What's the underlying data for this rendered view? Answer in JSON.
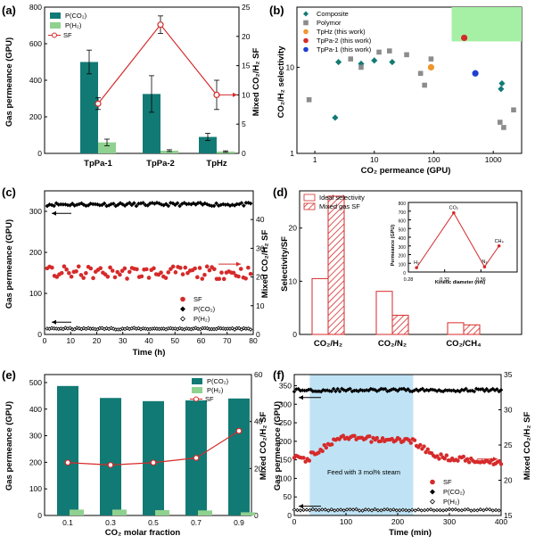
{
  "colors": {
    "teal": "#127a74",
    "lightgreen": "#8fd18f",
    "red": "#d62a2a",
    "black": "#000000",
    "hatch": "#d62a2a",
    "steam": "#bfe3f5",
    "target": "#a6f0a6",
    "orange": "#f0962e",
    "blue": "#1f3fd1",
    "grey": "#8c8c8c"
  },
  "chart_data": [
    {
      "id": "a",
      "panel_label": "(a)",
      "type": "bar",
      "categories": [
        "TpPa-1",
        "TpPa-2",
        "TpHz"
      ],
      "xlabel": "",
      "ylabel": "Gas permeance (GPU)",
      "ylabel2": "Mixed CO₂/H₂ SF",
      "ylim": [
        0,
        800
      ],
      "yticks": [
        "0",
        "200",
        "400",
        "600",
        "800"
      ],
      "ylim2": [
        0,
        25
      ],
      "yticks2": [
        "0",
        "5",
        "10",
        "15",
        "20",
        "25"
      ],
      "series": [
        {
          "name": "P(CO₂)",
          "values": [
            500,
            325,
            90
          ],
          "errors": [
            65,
            100,
            20
          ]
        },
        {
          "name": "P(H₂)",
          "values": [
            60,
            15,
            10
          ],
          "errors": [
            18,
            5,
            4
          ]
        },
        {
          "name": "SF",
          "values": [
            8.5,
            22,
            10
          ],
          "errors": [
            1,
            1.5,
            2.5
          ]
        }
      ],
      "legend": "top-left"
    },
    {
      "id": "b",
      "panel_label": "(b)",
      "type": "scatter",
      "xlabel": "CO₂ permeance (GPU)",
      "ylabel": "CO₂/H₂ selectivity",
      "xscale": "log",
      "yscale": "log",
      "xlim": [
        0.5,
        3000
      ],
      "ylim": [
        1,
        50
      ],
      "xticks": [
        "1",
        "10",
        "100",
        "1000"
      ],
      "yticks": [
        "1",
        "10"
      ],
      "series": [
        {
          "name": "Composite",
          "points": [
            [
              2.5,
              11.5
            ],
            [
              6,
              11
            ],
            [
              10,
              12
            ],
            [
              20,
              11.5
            ],
            [
              1400,
              6.5
            ],
            [
              1350,
              5.6
            ],
            [
              2.2,
              2.6
            ]
          ]
        },
        {
          "name": "Polymor",
          "points": [
            [
              0.8,
              4.2
            ],
            [
              4,
              12.5
            ],
            [
              6,
              10
            ],
            [
              12,
              15
            ],
            [
              18,
              15.5
            ],
            [
              35,
              14
            ],
            [
              60,
              8.5
            ],
            [
              70,
              6.2
            ],
            [
              90,
              12.5
            ],
            [
              1300,
              2.3
            ],
            [
              1500,
              2
            ],
            [
              2200,
              3.2
            ]
          ]
        },
        {
          "name": "TpHz (this work)",
          "points": [
            [
              90,
              10
            ]
          ]
        },
        {
          "name": "TpPa-2 (this work)",
          "points": [
            [
              325,
              22
            ]
          ]
        },
        {
          "name": "TpPa-1 (this work)",
          "points": [
            [
              500,
              8.5
            ]
          ]
        }
      ],
      "legend": "top-left"
    },
    {
      "id": "c",
      "panel_label": "(c)",
      "type": "scatter",
      "xlabel": "Time (h)",
      "ylabel": "Gas permeance (GPU)",
      "ylabel2": "Mixed CO₂/H₂ SF",
      "xlim": [
        0,
        80
      ],
      "xticks": [
        "0",
        "10",
        "20",
        "30",
        "40",
        "50",
        "60",
        "70",
        "80"
      ],
      "ylim": [
        0,
        350
      ],
      "yticks": [
        "0",
        "100",
        "200",
        "300"
      ],
      "ylim2": [
        0,
        50
      ],
      "yticks2": [
        "0",
        "10",
        "20",
        "30",
        "40"
      ],
      "series": [
        {
          "name": "SF",
          "mean": 21.5,
          "spread": 2.2,
          "range": [
            1,
            79
          ],
          "count": 85
        },
        {
          "name": "P(CO₂)",
          "mean": 317,
          "spread": 4,
          "range": [
            1,
            79
          ],
          "count": 90
        },
        {
          "name": "P(H₂)",
          "mean": 14,
          "spread": 2,
          "range": [
            1,
            79
          ],
          "count": 90
        }
      ],
      "legend": "bottom-right"
    },
    {
      "id": "d",
      "panel_label": "(d)",
      "type": "bar",
      "categories": [
        "CO₂/H₂",
        "CO₂/N₂",
        "CO₂/CH₄"
      ],
      "xlabel": "",
      "ylabel": "Selectivity/SF",
      "ylim": [
        0,
        27
      ],
      "yticks": [
        "0",
        "10",
        "20"
      ],
      "series": [
        {
          "name": "Ideal selectivity",
          "values": [
            10.5,
            8.1,
            2.2
          ]
        },
        {
          "name": "Mixed gas SF",
          "values": [
            26,
            3.6,
            1.8
          ]
        }
      ],
      "legend": "top-left",
      "inset": {
        "type": "line",
        "xlabel": "Kinetic diameter (nm)",
        "ylabel": "Permeance (GPU)",
        "xlim": [
          0.28,
          0.4
        ],
        "xticks": [
          "0.28",
          "0.32",
          "0.36"
        ],
        "ylim": [
          0,
          800
        ],
        "yticks": [
          "0",
          "100",
          "200",
          "300",
          "400",
          "500",
          "600",
          "700",
          "800"
        ],
        "points": [
          {
            "label": "H₂",
            "x": 0.289,
            "y": 50
          },
          {
            "label": "CO₂",
            "x": 0.33,
            "y": 680
          },
          {
            "label": "N₂",
            "x": 0.364,
            "y": 60
          },
          {
            "label": "CH₄",
            "x": 0.38,
            "y": 300
          }
        ]
      }
    },
    {
      "id": "e",
      "panel_label": "(e)",
      "type": "bar",
      "categories": [
        "0.1",
        "0.3",
        "0.5",
        "0.7",
        "0.9"
      ],
      "xlabel": "CO₂ molar fraction",
      "ylabel": "Gas permeance (GPU)",
      "ylabel2": "Mixed CO₂/H₂ SF",
      "ylim": [
        0,
        530
      ],
      "yticks": [
        "0",
        "100",
        "200",
        "300",
        "400",
        "500"
      ],
      "ylim2": [
        0,
        60
      ],
      "yticks2": [
        "0",
        "20",
        "40",
        "60"
      ],
      "series": [
        {
          "name": "P(CO₂)",
          "values": [
            487,
            442,
            430,
            433,
            440
          ]
        },
        {
          "name": "P(H₂)",
          "values": [
            22,
            22,
            20,
            19,
            12
          ]
        },
        {
          "name": "SF",
          "values": [
            22.5,
            21.5,
            22.5,
            24.5,
            36
          ]
        }
      ],
      "legend": "top-right"
    },
    {
      "id": "f",
      "panel_label": "(f)",
      "type": "scatter",
      "xlabel": "Time (min)",
      "ylabel": "Gas permeance (GPU)",
      "ylabel2": "Mixed CO₂/H₂ SF",
      "xlim": [
        0,
        400
      ],
      "xticks": [
        "0",
        "100",
        "200",
        "300",
        "400"
      ],
      "ylim": [
        0,
        380
      ],
      "yticks": [
        "0",
        "50",
        "100",
        "150",
        "200",
        "250",
        "300",
        "350"
      ],
      "ylim2": [
        15,
        35
      ],
      "yticks2": [
        "15",
        "20",
        "25",
        "30",
        "35"
      ],
      "annotation": "Feed with 3 mol% steam",
      "shaded_x": [
        30,
        230
      ],
      "series": [
        {
          "name": "SF",
          "note": "≈23 before steam, rising to ≈26 during steam, falling to ≈22.5 after"
        },
        {
          "name": "P(CO₂)",
          "mean": 338,
          "spread": 4,
          "range": [
            0,
            400
          ]
        },
        {
          "name": "P(H₂)",
          "mean": 15,
          "spread": 2,
          "range": [
            0,
            400
          ]
        }
      ],
      "legend": "bottom-right"
    }
  ]
}
